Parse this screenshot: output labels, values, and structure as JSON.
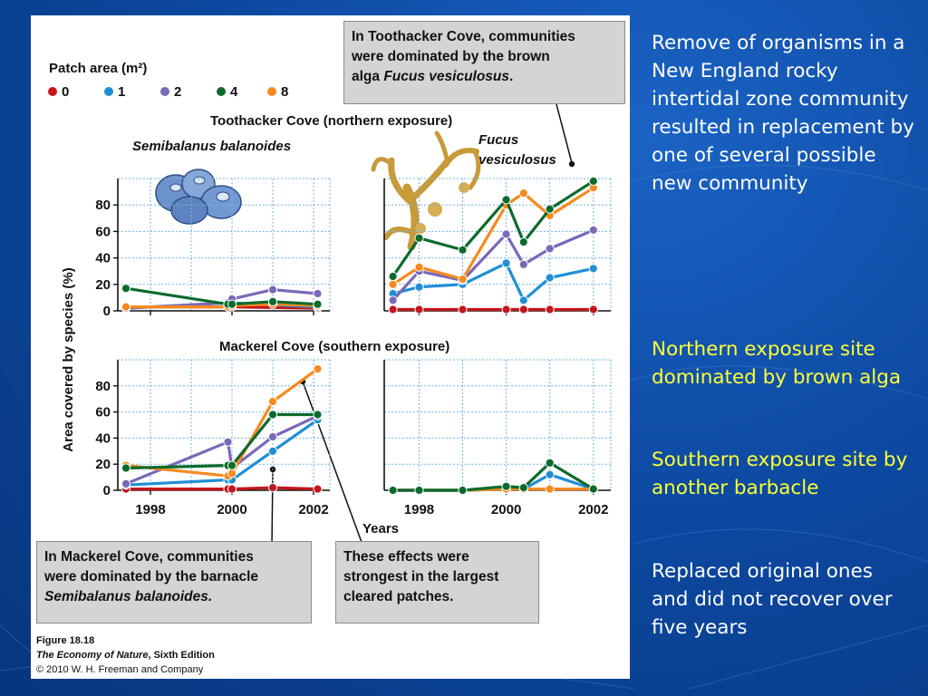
{
  "slide": {
    "side_text": {
      "p1": "Remove of organisms in a New England rocky intertidal zone community resulted in replacement by one of several possible new community",
      "p2": "Northern exposure site dominated by brown alga",
      "p3": "Southern exposure site by another barbacle",
      "p4": "Replaced original ones and did not recover over five years"
    }
  },
  "figure": {
    "legend_title": "Patch area (m²)",
    "legend": [
      {
        "label": "0",
        "color": "#c4161c"
      },
      {
        "label": "1",
        "color": "#1f8fd6"
      },
      {
        "label": "2",
        "color": "#7b68b8"
      },
      {
        "label": "4",
        "color": "#0c6b2c"
      },
      {
        "label": "8",
        "color": "#f58a1f"
      }
    ],
    "y_axis_label": "Area covered by species (%)",
    "x_axis_label": "Years",
    "top_title": "Toothacker Cove (northern exposure)",
    "bottom_title": "Mackerel Cove (southern exposure)",
    "species_left": "Semibalanus balanoides",
    "species_right_1": "Fucus",
    "species_right_2": "vesiculosus",
    "callout_top": {
      "line1": "In Toothacker Cove, communities",
      "line2": "were dominated by the brown",
      "line3a": "alga ",
      "line3b": "Fucus vesiculosus",
      "line3c": "."
    },
    "callout_bottom_left": {
      "line1": "In Mackerel Cove, communities",
      "line2": "were dominated by the barnacle",
      "line3": "Semibalanus balanoides."
    },
    "callout_bottom_right": {
      "line1": "These effects were",
      "line2": "strongest in the largest",
      "line3": "cleared patches."
    },
    "caption": {
      "line1": "Figure 18.18",
      "line2a": "The Economy of Nature",
      "line2b": ", Sixth Edition",
      "line3": "© 2010 W. H. Freeman and Company"
    }
  },
  "chart_data": [
    {
      "type": "line",
      "name": "Toothacker Cove — Semibalanus balanoides",
      "x_ticks": [
        "1998",
        "2000",
        "2002"
      ],
      "y_ticks": [
        "0",
        "20",
        "40",
        "60",
        "80"
      ],
      "ylim": [
        0,
        100
      ],
      "xlim": [
        1997.2,
        2002.4
      ],
      "series": [
        {
          "name": "0",
          "points": [
            [
              1997.4,
              3
            ],
            [
              1999.9,
              3
            ],
            [
              2000.0,
              3
            ],
            [
              2002.1,
              2
            ]
          ]
        },
        {
          "name": "1",
          "points": [
            [
              1997.4,
              2
            ],
            [
              1999.9,
              6
            ],
            [
              2000.0,
              6
            ],
            [
              2002.1,
              3
            ]
          ]
        },
        {
          "name": "2",
          "points": [
            [
              1997.4,
              2
            ],
            [
              1999.9,
              6
            ],
            [
              2000.0,
              9
            ],
            [
              2001.0,
              16
            ],
            [
              2002.1,
              13
            ]
          ]
        },
        {
          "name": "4",
          "points": [
            [
              1997.4,
              17
            ],
            [
              1999.9,
              5
            ],
            [
              2000.0,
              5
            ],
            [
              2001.0,
              7
            ],
            [
              2002.1,
              5
            ]
          ]
        },
        {
          "name": "8",
          "points": [
            [
              1997.4,
              3
            ],
            [
              1999.9,
              3
            ],
            [
              2000.0,
              4
            ],
            [
              2001.0,
              5
            ],
            [
              2002.1,
              4
            ]
          ]
        }
      ]
    },
    {
      "type": "line",
      "name": "Toothacker Cove — Fucus vesiculosus",
      "x_ticks": [
        "1998",
        "2000",
        "2002"
      ],
      "y_ticks": [
        "0",
        "20",
        "40",
        "60",
        "80"
      ],
      "ylim": [
        0,
        100
      ],
      "xlim": [
        1997.2,
        2002.4
      ],
      "series": [
        {
          "name": "0",
          "points": [
            [
              1997.4,
              1
            ],
            [
              1998.0,
              1
            ],
            [
              1999.0,
              1
            ],
            [
              2000.0,
              1
            ],
            [
              2000.4,
              1
            ],
            [
              2001.0,
              1
            ],
            [
              2002.0,
              1
            ]
          ]
        },
        {
          "name": "1",
          "points": [
            [
              1997.4,
              13
            ],
            [
              1998.0,
              18
            ],
            [
              1999.0,
              20
            ],
            [
              2000.0,
              36
            ],
            [
              2000.4,
              8
            ],
            [
              2001.0,
              25
            ],
            [
              2002.0,
              32
            ]
          ]
        },
        {
          "name": "2",
          "points": [
            [
              1997.4,
              8
            ],
            [
              1998.0,
              30
            ],
            [
              1999.0,
              23
            ],
            [
              2000.0,
              58
            ],
            [
              2000.4,
              35
            ],
            [
              2001.0,
              47
            ],
            [
              2002.0,
              61
            ]
          ]
        },
        {
          "name": "4",
          "points": [
            [
              1997.4,
              26
            ],
            [
              1998.0,
              55
            ],
            [
              1999.0,
              46
            ],
            [
              2000.0,
              84
            ],
            [
              2000.4,
              52
            ],
            [
              2001.0,
              77
            ],
            [
              2002.0,
              98
            ]
          ]
        },
        {
          "name": "8",
          "points": [
            [
              1997.4,
              20
            ],
            [
              1998.0,
              33
            ],
            [
              1999.0,
              24
            ],
            [
              2000.0,
              80
            ],
            [
              2000.4,
              89
            ],
            [
              2001.0,
              72
            ],
            [
              2002.0,
              93
            ]
          ]
        }
      ]
    },
    {
      "type": "line",
      "name": "Mackerel Cove — Semibalanus balanoides",
      "x_ticks": [
        "1998",
        "2000",
        "2002"
      ],
      "y_ticks": [
        "0",
        "20",
        "40",
        "60",
        "80"
      ],
      "ylim": [
        0,
        100
      ],
      "xlim": [
        1997.2,
        2002.4
      ],
      "series": [
        {
          "name": "0",
          "points": [
            [
              1997.4,
              1
            ],
            [
              1999.9,
              1
            ],
            [
              2000.0,
              1
            ],
            [
              2001.0,
              2
            ],
            [
              2002.1,
              1
            ]
          ]
        },
        {
          "name": "1",
          "points": [
            [
              1997.4,
              4
            ],
            [
              1999.9,
              8
            ],
            [
              2000.0,
              8
            ],
            [
              2001.0,
              30
            ],
            [
              2002.1,
              54
            ]
          ]
        },
        {
          "name": "2",
          "points": [
            [
              1997.4,
              5
            ],
            [
              1999.9,
              37
            ],
            [
              2000.0,
              17
            ],
            [
              2001.0,
              41
            ],
            [
              2002.1,
              57
            ]
          ]
        },
        {
          "name": "4",
          "points": [
            [
              1997.4,
              17
            ],
            [
              1999.9,
              19
            ],
            [
              2000.0,
              19
            ],
            [
              2001.0,
              58
            ],
            [
              2002.1,
              58
            ]
          ]
        },
        {
          "name": "8",
          "points": [
            [
              1997.4,
              19
            ],
            [
              1999.9,
              11
            ],
            [
              2000.0,
              13
            ],
            [
              2001.0,
              68
            ],
            [
              2002.1,
              93
            ]
          ]
        }
      ]
    },
    {
      "type": "line",
      "name": "Mackerel Cove — Fucus vesiculosus",
      "x_ticks": [
        "1998",
        "2000",
        "2002"
      ],
      "y_ticks": [
        "0",
        "20",
        "40",
        "60",
        "80"
      ],
      "ylim": [
        0,
        100
      ],
      "xlim": [
        1997.2,
        2002.4
      ],
      "series": [
        {
          "name": "0",
          "points": [
            [
              1997.4,
              0
            ],
            [
              1998.0,
              0
            ],
            [
              1999.0,
              0
            ],
            [
              2000.0,
              1
            ],
            [
              2000.4,
              1
            ],
            [
              2001.0,
              1
            ],
            [
              2002.0,
              1
            ]
          ]
        },
        {
          "name": "1",
          "points": [
            [
              1997.4,
              0
            ],
            [
              1998.0,
              0
            ],
            [
              1999.0,
              0
            ],
            [
              2000.0,
              1
            ],
            [
              2000.4,
              1
            ],
            [
              2001.0,
              12
            ],
            [
              2002.0,
              1
            ]
          ]
        },
        {
          "name": "2",
          "points": [
            [
              1997.4,
              0
            ],
            [
              1998.0,
              0
            ],
            [
              1999.0,
              0
            ],
            [
              2000.0,
              1
            ],
            [
              2000.4,
              1
            ],
            [
              2001.0,
              1
            ],
            [
              2002.0,
              1
            ]
          ]
        },
        {
          "name": "4",
          "points": [
            [
              1997.4,
              0
            ],
            [
              1998.0,
              0
            ],
            [
              1999.0,
              0
            ],
            [
              2000.0,
              3
            ],
            [
              2000.4,
              2
            ],
            [
              2001.0,
              21
            ],
            [
              2002.0,
              1
            ]
          ]
        },
        {
          "name": "8",
          "points": [
            [
              1997.4,
              0
            ],
            [
              1998.0,
              0
            ],
            [
              1999.0,
              0
            ],
            [
              2000.0,
              1
            ],
            [
              2000.4,
              1
            ],
            [
              2001.0,
              1
            ],
            [
              2002.0,
              1
            ]
          ]
        }
      ]
    }
  ]
}
